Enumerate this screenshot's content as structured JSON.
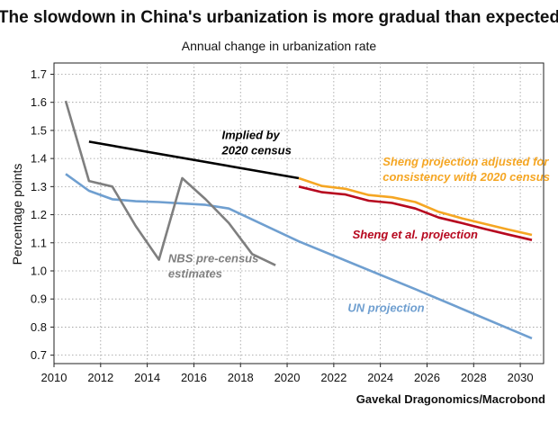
{
  "chart_data": {
    "type": "line",
    "title": "The slowdown in China's urbanization is more gradual than expected",
    "subtitle": "Annual change in urbanization rate",
    "ylabel": "Percentage points",
    "xlabel": "",
    "source": "Gavekal Dragonomics/Macrobond",
    "xlim": [
      2010,
      2031
    ],
    "ylim": [
      0.67,
      1.74
    ],
    "x_ticks": [
      "2010",
      "2012",
      "2014",
      "2016",
      "2018",
      "2020",
      "2022",
      "2024",
      "2026",
      "2028",
      "2030"
    ],
    "y_ticks": [
      "0.7",
      "0.8",
      "0.9",
      "1.0",
      "1.1",
      "1.2",
      "1.3",
      "1.4",
      "1.5",
      "1.6",
      "1.7"
    ],
    "grid": true,
    "series": [
      {
        "name": "UN projection",
        "color": "#6f9fd0",
        "x": [
          2010.5,
          2011.5,
          2012.5,
          2013.5,
          2014.5,
          2015.5,
          2016.5,
          2017.5,
          2020.5,
          2025.5,
          2030.5
        ],
        "y": [
          1.345,
          1.285,
          1.255,
          1.248,
          1.245,
          1.24,
          1.235,
          1.222,
          1.105,
          0.935,
          0.76
        ]
      },
      {
        "name": "NBS pre-census estimates",
        "color": "#7f7f7f",
        "x": [
          2010.5,
          2011.5,
          2012.5,
          2013.5,
          2014.5,
          2015.5,
          2016.5,
          2017.5,
          2018.5,
          2019.5
        ],
        "y": [
          1.605,
          1.32,
          1.3,
          1.16,
          1.04,
          1.33,
          1.255,
          1.17,
          1.06,
          1.02
        ]
      },
      {
        "name": "Implied by 2020 census",
        "color": "#000000",
        "x": [
          2011.5,
          2020.5
        ],
        "y": [
          1.46,
          1.33
        ]
      },
      {
        "name": "Sheng projection adjusted for consistency with 2020 census",
        "color": "#f5a623",
        "x": [
          2020.5,
          2021.5,
          2022.5,
          2023.5,
          2024.5,
          2025.5,
          2026.5,
          2027.5,
          2028.5,
          2029.5,
          2030.5
        ],
        "y": [
          1.33,
          1.302,
          1.292,
          1.27,
          1.262,
          1.245,
          1.21,
          1.187,
          1.167,
          1.147,
          1.128
        ]
      },
      {
        "name": "Sheng et al. projection",
        "color": "#b7081f",
        "x": [
          2020.5,
          2021.5,
          2022.5,
          2023.5,
          2024.5,
          2025.5,
          2026.5,
          2027.5,
          2028.5,
          2029.5,
          2030.5
        ],
        "y": [
          1.3,
          1.28,
          1.272,
          1.25,
          1.242,
          1.222,
          1.19,
          1.17,
          1.149,
          1.129,
          1.11
        ]
      }
    ],
    "annotations": [
      {
        "lines": [
          "Implied by",
          "2020 census"
        ],
        "color": "#000000",
        "x": 2017.2,
        "y": 1.47,
        "anchor": "start"
      },
      {
        "lines": [
          "Sheng projection adjusted for",
          "consistency with 2020 census"
        ],
        "color": "#f5a623",
        "x": 2024.1,
        "y": 1.375,
        "anchor": "start"
      },
      {
        "lines": [
          "Sheng et al. projection"
        ],
        "color": "#b7081f",
        "x": 2022.8,
        "y": 1.115,
        "anchor": "start"
      },
      {
        "lines": [
          "NBS pre-census",
          "estimates"
        ],
        "color": "#7f7f7f",
        "x": 2014.9,
        "y": 1.03,
        "anchor": "start"
      },
      {
        "lines": [
          "UN projection"
        ],
        "color": "#6f9fd0",
        "x": 2022.6,
        "y": 0.855,
        "anchor": "start"
      }
    ]
  }
}
